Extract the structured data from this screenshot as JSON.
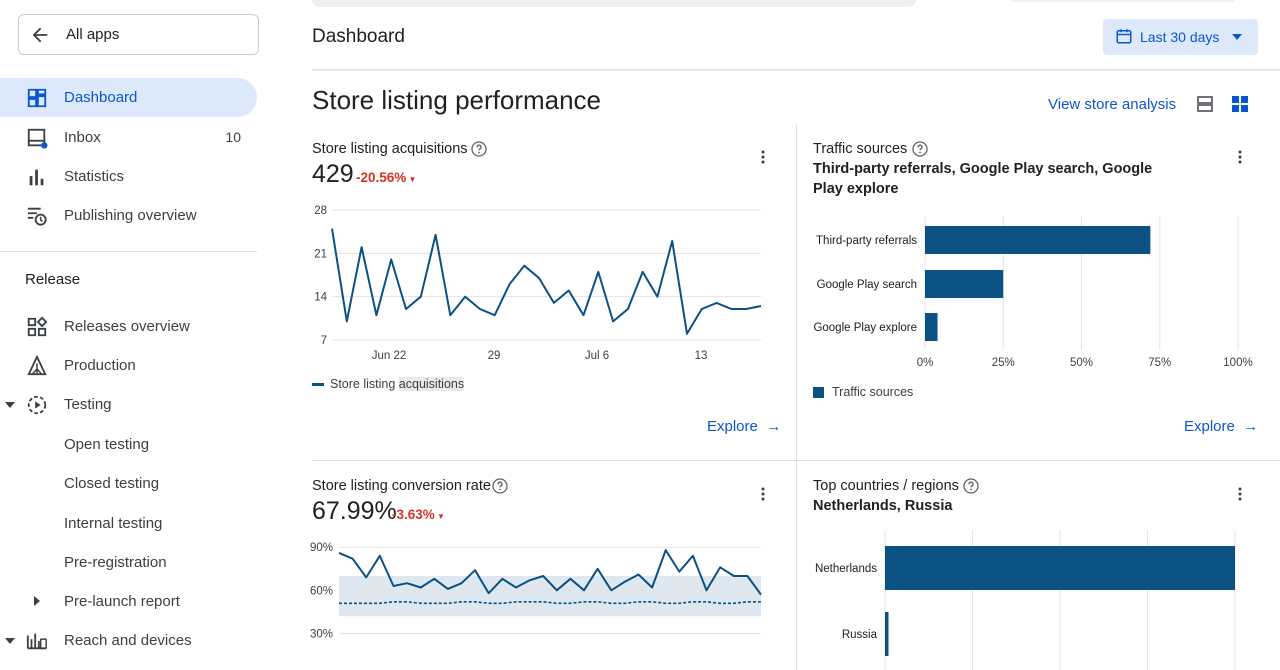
{
  "sidebar": {
    "all_apps": "All apps",
    "items": [
      {
        "label": "Dashboard",
        "icon": "dashboard-icon",
        "active": true
      },
      {
        "label": "Inbox",
        "icon": "inbox-icon",
        "count": "10"
      },
      {
        "label": "Statistics",
        "icon": "bar-chart-icon"
      },
      {
        "label": "Publishing overview",
        "icon": "publishing-icon"
      }
    ],
    "release_label": "Release",
    "release_items": [
      {
        "label": "Releases overview",
        "icon": "releases-overview-icon"
      },
      {
        "label": "Production",
        "icon": "production-icon"
      },
      {
        "label": "Testing",
        "icon": "testing-icon"
      }
    ],
    "testing_sub": [
      "Open testing",
      "Closed testing",
      "Internal testing",
      "Pre-registration"
    ],
    "pre_launch": "Pre-launch report",
    "reach": "Reach and devices"
  },
  "header": {
    "title": "Dashboard",
    "date_range": "Last 30 days"
  },
  "section": {
    "title": "Store listing performance",
    "view_analysis": "View store analysis"
  },
  "cards": {
    "acquisitions": {
      "title": "Store listing acquisitions",
      "value": "429",
      "delta": "-20.56%",
      "legend": "Store listing",
      "legend_highlight": "acquisitions",
      "explore": "Explore"
    },
    "traffic": {
      "title": "Traffic sources",
      "subtitle": "Third-party referrals, Google Play search, Google Play explore",
      "legend": "Traffic sources",
      "explore": "Explore"
    },
    "conversion": {
      "title": "Store listing conversion rate",
      "value": "67.99%",
      "delta": "-3.63%"
    },
    "countries": {
      "title": "Top countries / regions",
      "subtitle": "Netherlands, Russia"
    }
  },
  "colors": {
    "accent": "#0b57d0",
    "series": "#0b5184",
    "negative": "#d93025",
    "active_bg": "#dde9fb"
  },
  "chart_data": [
    {
      "type": "line",
      "title": "Store listing acquisitions",
      "x_ticks": [
        "Jun 22",
        "29",
        "Jul 6",
        "13"
      ],
      "y_ticks": [
        "28",
        "21",
        "14",
        "7"
      ],
      "ylim": [
        7,
        28
      ],
      "series": [
        {
          "name": "Store listing acquisitions",
          "values": [
            25,
            10,
            22,
            11,
            20,
            12,
            14,
            24,
            11,
            14,
            12,
            11,
            16,
            19,
            17,
            13,
            15,
            11,
            18,
            10,
            12,
            18,
            14,
            23,
            8,
            12,
            13,
            12,
            12,
            12.5
          ]
        }
      ]
    },
    {
      "type": "bar",
      "orientation": "horizontal",
      "categories": [
        "Third-party referrals",
        "Google Play search",
        "Google Play explore"
      ],
      "values": [
        72,
        25,
        4
      ],
      "x_ticks": [
        "0%",
        "25%",
        "50%",
        "75%",
        "100%"
      ],
      "xlim": [
        0,
        100
      ],
      "legend": "Traffic sources"
    },
    {
      "type": "line",
      "title": "Store listing conversion rate",
      "y_ticks": [
        "90%",
        "60%",
        "30%"
      ],
      "ylim": [
        22,
        95
      ],
      "series": [
        {
          "values": [
            86,
            82,
            69,
            84,
            63,
            65,
            62,
            68,
            61,
            65,
            74,
            58,
            68,
            62,
            67,
            70,
            60,
            68,
            60,
            75,
            60,
            66,
            71,
            62,
            88,
            73,
            84,
            60,
            76,
            70,
            70,
            57
          ]
        },
        {
          "values": [
            51,
            51,
            51,
            51,
            52,
            52,
            51,
            51,
            51,
            52,
            52,
            51,
            51,
            52,
            52,
            52,
            51,
            51,
            52,
            52,
            51,
            51,
            52,
            52,
            51,
            51,
            52,
            52,
            51,
            51,
            52,
            52
          ]
        }
      ],
      "band": [
        42,
        70
      ]
    },
    {
      "type": "bar",
      "orientation": "horizontal",
      "categories": [
        "Netherlands",
        "Russia"
      ],
      "values": [
        100,
        1
      ]
    }
  ]
}
